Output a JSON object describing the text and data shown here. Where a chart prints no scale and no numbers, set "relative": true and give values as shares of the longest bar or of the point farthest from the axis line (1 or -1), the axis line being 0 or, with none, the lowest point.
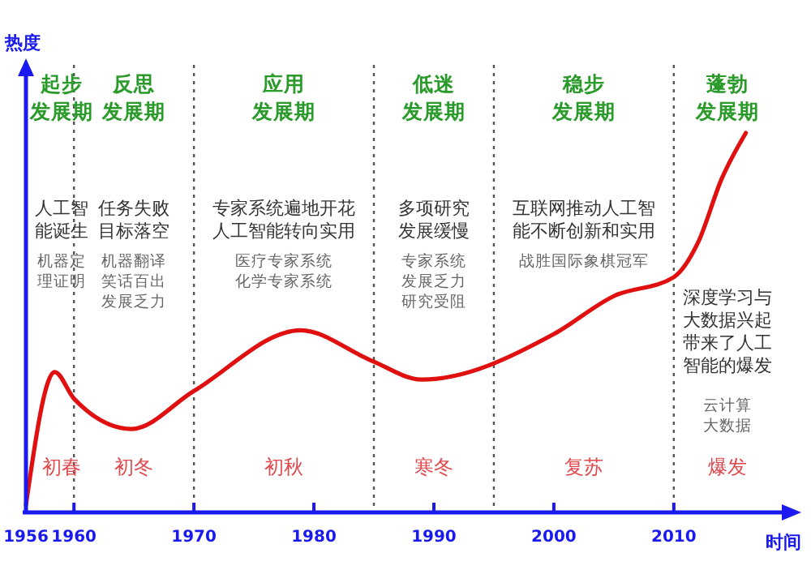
{
  "chart_data": {
    "type": "line",
    "relative": true,
    "xlabel": "时间",
    "ylabel": "热度",
    "x": [
      1956,
      1958.4,
      1960,
      1964.8,
      1970,
      1978.9,
      1984.8,
      1989,
      2000,
      2005,
      2010,
      2012,
      2014,
      2016
    ],
    "series": [
      {
        "color": "#e01010",
        "values": [
          0.02,
          0.37,
          0.3,
          0.22,
          0.32,
          0.48,
          0.4,
          0.35,
          0.47,
          0.57,
          0.62,
          0.71,
          0.88,
          1
        ]
      }
    ],
    "xlim": [
      1956,
      2019
    ],
    "xticks": [
      1956,
      1960,
      1970,
      1980,
      1990,
      2000,
      2010
    ],
    "ref_lines": [
      {
        "axis": "x",
        "value": 1960,
        "color": "#555555",
        "line_style": "dotted"
      },
      {
        "axis": "x",
        "value": 1970,
        "color": "#555555",
        "line_style": "dotted"
      },
      {
        "axis": "x",
        "value": 1985,
        "color": "#555555",
        "line_style": "dotted"
      },
      {
        "axis": "x",
        "value": 1995,
        "color": "#555555",
        "line_style": "dotted"
      },
      {
        "axis": "x",
        "value": 2010,
        "color": "#555555",
        "line_style": "dotted"
      }
    ],
    "annotations": [
      "起步发展期",
      "反思发展期",
      "应用发展期",
      "低迷发展期",
      "稳步发展期",
      "蓬勃发展期",
      "人工智能诞生",
      "任务失败目标落空",
      "专家系统遍地开花人工智能转向实用",
      "多项研究发展缓慢",
      "互联网推动人工智能不断创新和实用",
      "深度学习与大数据兴起带来了人工智能的爆发",
      "机器定理证明",
      "机器翻译笑话百出发展乏力",
      "医疗专家系统化学专家系统",
      "专家系统发展乏力研究受阻",
      "战胜国际象棋冠军",
      "云计算大数据",
      "初春",
      "初冬",
      "初秋",
      "寒冬",
      "复苏",
      "爆发"
    ]
  }
}
